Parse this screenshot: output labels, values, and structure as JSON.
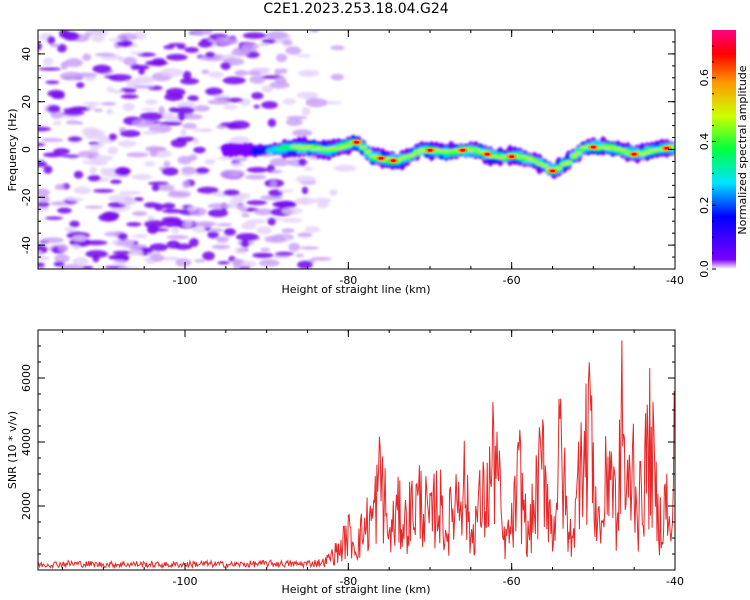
{
  "title": "C2E1.2023.253.18.04.G24",
  "chart_data": [
    {
      "type": "heatmap",
      "xlabel": "Height of straight line (km)",
      "ylabel": "Frequency (Hz)",
      "xlim": [
        -118,
        -40
      ],
      "ylim": [
        -50,
        50
      ],
      "xticks": [
        -100,
        -80,
        -60,
        -40
      ],
      "yticks": [
        -40,
        -20,
        0,
        20,
        40
      ],
      "description_values": {
        "noise_region_x": [
          -118,
          -82
        ],
        "ridge_path": [
          {
            "x": -95,
            "y": -1
          },
          {
            "x": -90,
            "y": 0
          },
          {
            "x": -86,
            "y": 1
          },
          {
            "x": -82,
            "y": 0
          },
          {
            "x": -79,
            "y": 3
          },
          {
            "x": -77,
            "y": -3
          },
          {
            "x": -74,
            "y": -5
          },
          {
            "x": -71,
            "y": 0
          },
          {
            "x": -68,
            "y": -1
          },
          {
            "x": -65,
            "y": 0
          },
          {
            "x": -62,
            "y": -3
          },
          {
            "x": -59,
            "y": -3
          },
          {
            "x": -57,
            "y": -5
          },
          {
            "x": -55,
            "y": -9
          },
          {
            "x": -53,
            "y": -5
          },
          {
            "x": -51,
            "y": 1
          },
          {
            "x": -48,
            "y": 1
          },
          {
            "x": -45,
            "y": -2
          },
          {
            "x": -42,
            "y": 0
          },
          {
            "x": -40,
            "y": 1
          }
        ]
      },
      "colorbar": {
        "label": "Normalized spectral amplitude",
        "range": [
          0,
          0.75
        ],
        "ticks": [
          "0.0",
          "0.2",
          "0.4",
          "0.6"
        ]
      }
    },
    {
      "type": "line",
      "xlabel": "Height of straight line (km)",
      "ylabel": "SNR (10 * v/v)",
      "xlim": [
        -118,
        -40
      ],
      "ylim": [
        0,
        7500
      ],
      "xticks": [
        -100,
        -80,
        -60,
        -40
      ],
      "yticks": [
        2000,
        4000,
        6000
      ],
      "color": "#e82828",
      "series": [
        {
          "x": [
            -118,
            -114,
            -110,
            -106,
            -102,
            -98,
            -94,
            -90,
            -86,
            -83,
            -81,
            -80,
            -79,
            -78,
            -77,
            -76,
            -75.5,
            -75,
            -74,
            -73,
            -72,
            -71,
            -70,
            -69,
            -68,
            -67,
            -66,
            -65,
            -64,
            -63,
            -62,
            -61,
            -60,
            -59,
            -58,
            -57,
            -56,
            -55,
            -54,
            -53,
            -52,
            -51.5,
            -51,
            -50.5,
            -50,
            -49,
            -48,
            -47,
            -46.5,
            -46,
            -45,
            -44.5,
            -44,
            -43,
            -42,
            -41,
            -40.5,
            -40
          ],
          "values": [
            200,
            250,
            210,
            230,
            200,
            240,
            210,
            250,
            230,
            300,
            800,
            1400,
            900,
            1700,
            2000,
            3700,
            2500,
            1200,
            2200,
            1800,
            2500,
            2700,
            1800,
            2800,
            1400,
            2600,
            3800,
            1200,
            2400,
            2800,
            4700,
            1000,
            1600,
            3600,
            1200,
            2800,
            4300,
            1300,
            4800,
            1100,
            2300,
            6800,
            3800,
            7400,
            3000,
            1500,
            4700,
            1400,
            6900,
            2500,
            4300,
            2000,
            3300,
            4900,
            1700,
            2700,
            800,
            5300
          ]
        }
      ]
    }
  ]
}
